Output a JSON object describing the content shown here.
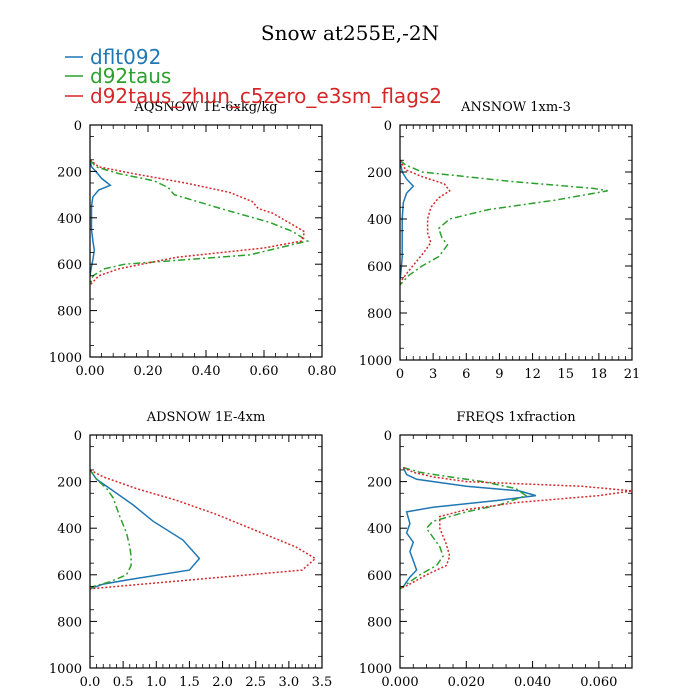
{
  "title": "Snow at255E,-2N",
  "legend": [
    {
      "label": "dflt092",
      "color": "#1f77b4",
      "dash": "solid"
    },
    {
      "label": "d92taus",
      "color": "#2ca02c",
      "dash": "dashdot"
    },
    {
      "label": "d92taus_zhun_c5zero_e3sm_flags2",
      "color": "#d62728",
      "dash": "dotted"
    }
  ],
  "chart_data": [
    {
      "type": "line",
      "title": "AQSNOW  1E-6xkg/kg",
      "xlim": [
        0,
        0.8
      ],
      "xticks": [
        0,
        0.2,
        0.4,
        0.6,
        0.8
      ],
      "xtick_labels": [
        "0.00",
        "0.20",
        "0.40",
        "0.60",
        "0.80"
      ],
      "ylim": [
        1000,
        0
      ],
      "yticks": [
        0,
        200,
        400,
        600,
        800,
        1000
      ],
      "ytick_labels": [
        "0",
        "200",
        "400",
        "600",
        "800",
        "1000"
      ],
      "series": [
        {
          "name": "dflt092",
          "points": [
            [
              0,
              150
            ],
            [
              0.005,
              180
            ],
            [
              0.02,
              200
            ],
            [
              0.04,
              230
            ],
            [
              0.07,
              260
            ],
            [
              0.03,
              280
            ],
            [
              0.01,
              310
            ],
            [
              0.005,
              350
            ],
            [
              0.005,
              450
            ],
            [
              0.01,
              500
            ],
            [
              0.015,
              540
            ],
            [
              0.01,
              580
            ],
            [
              0.005,
              610
            ],
            [
              0,
              650
            ]
          ]
        },
        {
          "name": "d92taus",
          "points": [
            [
              0,
              150
            ],
            [
              0.02,
              180
            ],
            [
              0.1,
              210
            ],
            [
              0.22,
              240
            ],
            [
              0.27,
              270
            ],
            [
              0.29,
              300
            ],
            [
              0.45,
              360
            ],
            [
              0.62,
              420
            ],
            [
              0.7,
              460
            ],
            [
              0.75,
              500
            ],
            [
              0.55,
              560
            ],
            [
              0.12,
              600
            ],
            [
              0.05,
              620
            ],
            [
              0.01,
              650
            ],
            [
              0,
              690
            ]
          ]
        },
        {
          "name": "d92taus_zhun_c5zero_e3sm_flags2",
          "points": [
            [
              0,
              150
            ],
            [
              0.03,
              180
            ],
            [
              0.15,
              210
            ],
            [
              0.33,
              250
            ],
            [
              0.48,
              290
            ],
            [
              0.56,
              330
            ],
            [
              0.58,
              360
            ],
            [
              0.63,
              380
            ],
            [
              0.74,
              460
            ],
            [
              0.73,
              500
            ],
            [
              0.6,
              530
            ],
            [
              0.3,
              570
            ],
            [
              0.1,
              620
            ],
            [
              0.03,
              650
            ],
            [
              0,
              690
            ]
          ]
        }
      ]
    },
    {
      "type": "line",
      "title": "ANSNOW  1xm-3",
      "xlim": [
        0,
        21
      ],
      "xticks": [
        0,
        3,
        6,
        9,
        12,
        15,
        18,
        21
      ],
      "xtick_labels": [
        "0",
        "3",
        "6",
        "9",
        "12",
        "15",
        "18",
        "21"
      ],
      "ylim": [
        1000,
        0
      ],
      "yticks": [
        0,
        200,
        400,
        600,
        800,
        1000
      ],
      "ytick_labels": [
        "0",
        "200",
        "400",
        "600",
        "800",
        "1000"
      ],
      "series": [
        {
          "name": "dflt092",
          "points": [
            [
              0,
              150
            ],
            [
              0.2,
              200
            ],
            [
              0.6,
              230
            ],
            [
              1.2,
              260
            ],
            [
              0.6,
              290
            ],
            [
              0.3,
              330
            ],
            [
              0.2,
              400
            ],
            [
              0.2,
              500
            ],
            [
              0.2,
              560
            ],
            [
              0.1,
              620
            ],
            [
              0,
              660
            ]
          ]
        },
        {
          "name": "d92taus",
          "points": [
            [
              0,
              150
            ],
            [
              0.5,
              170
            ],
            [
              2,
              200
            ],
            [
              10,
              240
            ],
            [
              17.5,
              270
            ],
            [
              18.8,
              280
            ],
            [
              14,
              320
            ],
            [
              8,
              360
            ],
            [
              4.5,
              400
            ],
            [
              3.5,
              440
            ],
            [
              3.8,
              480
            ],
            [
              4.3,
              510
            ],
            [
              3.5,
              560
            ],
            [
              2,
              600
            ],
            [
              0.8,
              640
            ],
            [
              0,
              680
            ]
          ]
        },
        {
          "name": "d92taus_zhun_c5zero_e3sm_flags2",
          "points": [
            [
              0,
              150
            ],
            [
              0.5,
              190
            ],
            [
              2,
              220
            ],
            [
              4,
              250
            ],
            [
              4.5,
              280
            ],
            [
              3.5,
              310
            ],
            [
              2.8,
              350
            ],
            [
              2.5,
              400
            ],
            [
              2.5,
              460
            ],
            [
              2.8,
              500
            ],
            [
              2.2,
              540
            ],
            [
              1.5,
              580
            ],
            [
              0.8,
              620
            ],
            [
              0,
              670
            ]
          ]
        }
      ]
    },
    {
      "type": "line",
      "title": "ADSNOW  1E-4xm",
      "xlim": [
        0,
        3.5
      ],
      "xticks": [
        0,
        0.5,
        1,
        1.5,
        2,
        2.5,
        3,
        3.5
      ],
      "xtick_labels": [
        "0.0",
        "0.5",
        "1.0",
        "1.5",
        "2.0",
        "2.5",
        "3.0",
        "3.5"
      ],
      "ylim": [
        1000,
        0
      ],
      "yticks": [
        0,
        200,
        400,
        600,
        800,
        1000
      ],
      "ytick_labels": [
        "0",
        "200",
        "400",
        "600",
        "800",
        "1000"
      ],
      "series": [
        {
          "name": "dflt092",
          "points": [
            [
              0,
              150
            ],
            [
              0.1,
              190
            ],
            [
              0.35,
              240
            ],
            [
              0.65,
              300
            ],
            [
              0.95,
              370
            ],
            [
              1.4,
              450
            ],
            [
              1.65,
              530
            ],
            [
              1.5,
              580
            ],
            [
              0.6,
              620
            ],
            [
              0.2,
              640
            ],
            [
              0,
              660
            ]
          ]
        },
        {
          "name": "d92taus",
          "points": [
            [
              0,
              150
            ],
            [
              0.1,
              190
            ],
            [
              0.25,
              230
            ],
            [
              0.35,
              270
            ],
            [
              0.45,
              350
            ],
            [
              0.55,
              420
            ],
            [
              0.6,
              480
            ],
            [
              0.62,
              520
            ],
            [
              0.62,
              560
            ],
            [
              0.55,
              600
            ],
            [
              0.3,
              630
            ],
            [
              0.05,
              650
            ],
            [
              0,
              660
            ]
          ]
        },
        {
          "name": "d92taus_zhun_c5zero_e3sm_flags2",
          "points": [
            [
              0,
              150
            ],
            [
              0.2,
              180
            ],
            [
              0.7,
              230
            ],
            [
              1.3,
              280
            ],
            [
              1.9,
              340
            ],
            [
              2.5,
              410
            ],
            [
              3.1,
              480
            ],
            [
              3.4,
              530
            ],
            [
              3.2,
              580
            ],
            [
              2,
              610
            ],
            [
              0.8,
              640
            ],
            [
              0,
              660
            ]
          ]
        }
      ]
    },
    {
      "type": "line",
      "title": "FREQS  1xfraction",
      "xlim": [
        0,
        0.07
      ],
      "xticks": [
        0,
        0.02,
        0.04,
        0.06
      ],
      "xtick_labels": [
        "0.000",
        "0.020",
        "0.040",
        "0.060"
      ],
      "ylim": [
        1000,
        0
      ],
      "yticks": [
        0,
        200,
        400,
        600,
        800,
        1000
      ],
      "ytick_labels": [
        "0",
        "200",
        "400",
        "600",
        "800",
        "1000"
      ],
      "series": [
        {
          "name": "dflt092",
          "points": [
            [
              0.001,
              140
            ],
            [
              0.002,
              170
            ],
            [
              0.005,
              190
            ],
            [
              0.02,
              220
            ],
            [
              0.036,
              240
            ],
            [
              0.041,
              260
            ],
            [
              0.03,
              280
            ],
            [
              0.01,
              310
            ],
            [
              0.002,
              330
            ],
            [
              0.003,
              380
            ],
            [
              0.002,
              420
            ],
            [
              0.004,
              460
            ],
            [
              0.003,
              500
            ],
            [
              0.004,
              540
            ],
            [
              0.005,
              580
            ],
            [
              0.003,
              610
            ],
            [
              0.001,
              650
            ],
            [
              0,
              660
            ]
          ]
        },
        {
          "name": "d92taus",
          "points": [
            [
              0.001,
              140
            ],
            [
              0.006,
              160
            ],
            [
              0.015,
              180
            ],
            [
              0.025,
              200
            ],
            [
              0.035,
              230
            ],
            [
              0.038,
              260
            ],
            [
              0.03,
              300
            ],
            [
              0.02,
              330
            ],
            [
              0.01,
              370
            ],
            [
              0.008,
              400
            ],
            [
              0.01,
              440
            ],
            [
              0.012,
              480
            ],
            [
              0.013,
              520
            ],
            [
              0.011,
              560
            ],
            [
              0.006,
              600
            ],
            [
              0.002,
              640
            ],
            [
              0,
              660
            ]
          ]
        },
        {
          "name": "d92taus_zhun_c5zero_e3sm_flags2",
          "points": [
            [
              0.001,
              140
            ],
            [
              0.004,
              160
            ],
            [
              0.01,
              180
            ],
            [
              0.02,
              200
            ],
            [
              0.055,
              220
            ],
            [
              0.07,
              240
            ],
            [
              0.06,
              260
            ],
            [
              0.035,
              290
            ],
            [
              0.02,
              320
            ],
            [
              0.012,
              350
            ],
            [
              0.012,
              400
            ],
            [
              0.014,
              470
            ],
            [
              0.015,
              520
            ],
            [
              0.014,
              560
            ],
            [
              0.008,
              600
            ],
            [
              0.003,
              640
            ],
            [
              0,
              660
            ]
          ]
        }
      ]
    }
  ]
}
